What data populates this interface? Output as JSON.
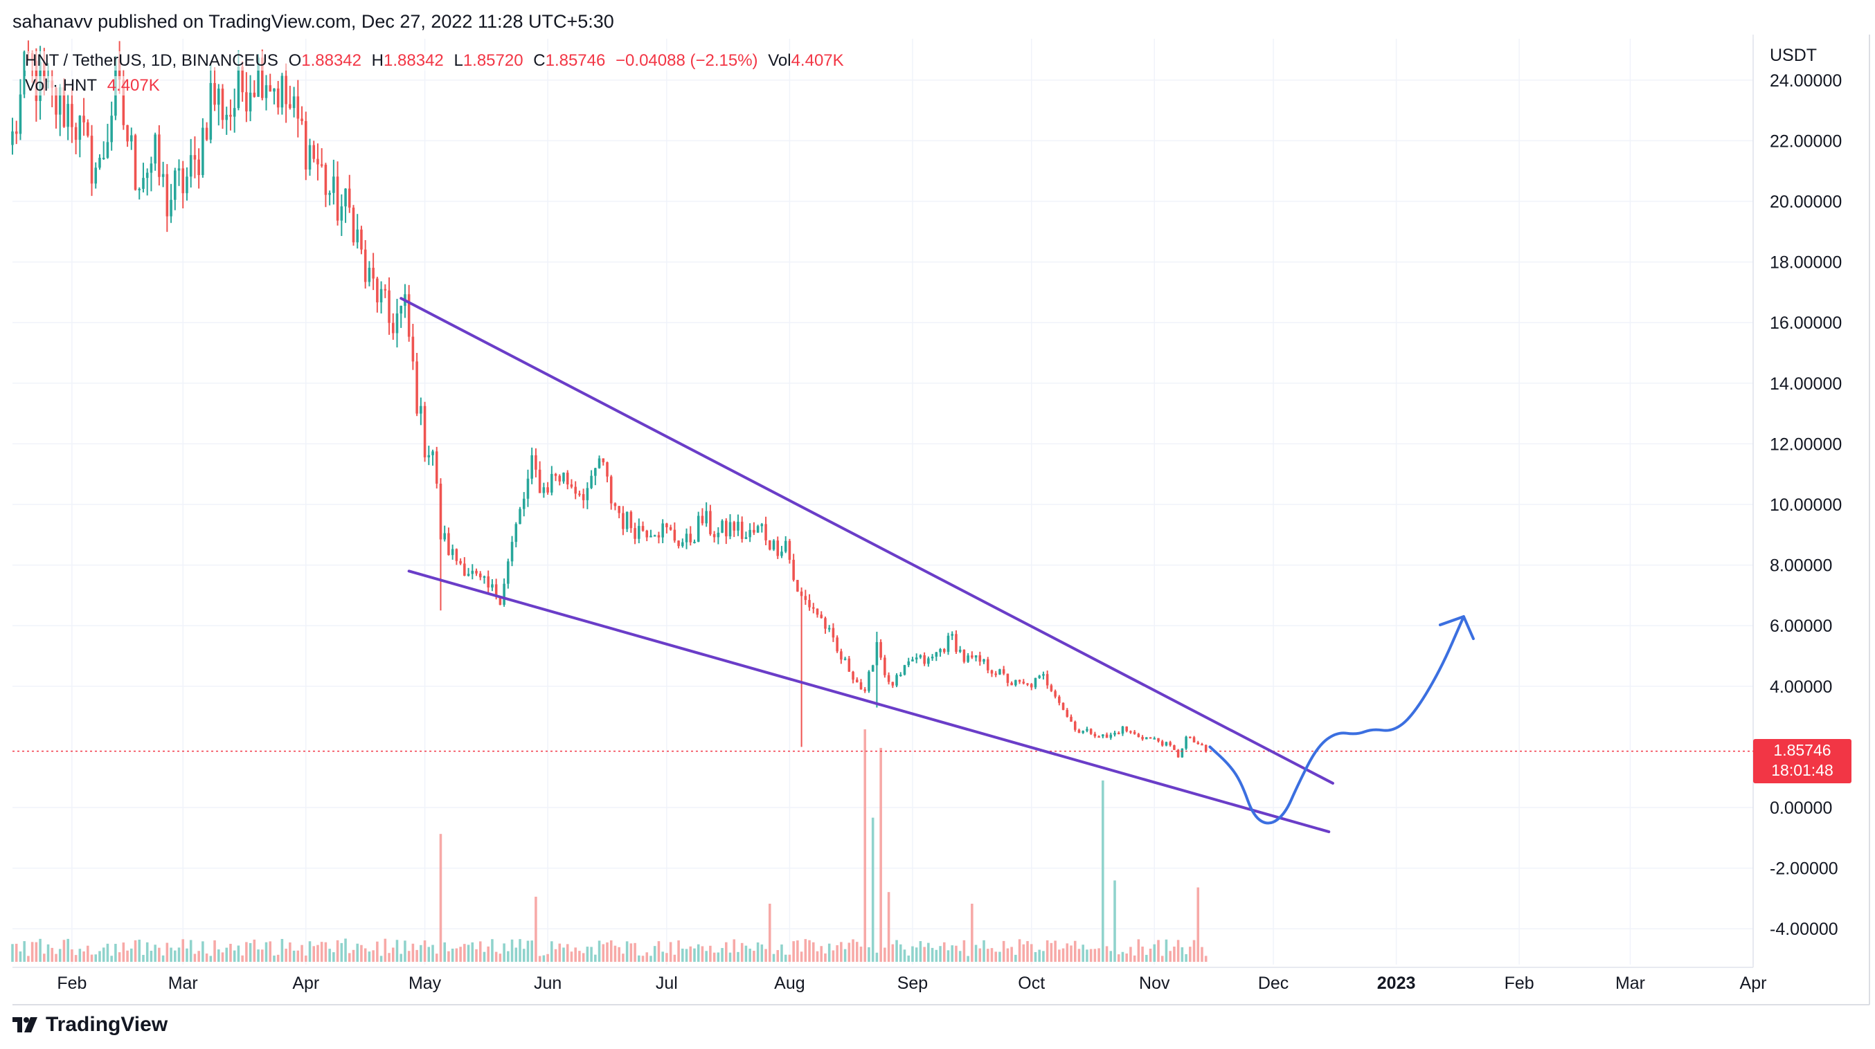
{
  "header": {
    "published_by": "sahanavv published on TradingView.com, Dec 27, 2022 11:28 UTC+5:30"
  },
  "legend": {
    "symbol": "HNT / TetherUS, 1D, BINANCEUS",
    "o_key": "O",
    "o_val": "1.88342",
    "h_key": "H",
    "h_val": "1.88342",
    "l_key": "L",
    "l_val": "1.85720",
    "c_key": "C",
    "c_val": "1.85746",
    "change": "−0.04088 (−2.15%)",
    "vol_key": "Vol",
    "vol_val": "4.407K",
    "vol_series": "Vol · HNT",
    "vol_series_val": "4.407K"
  },
  "price_badge": {
    "price": "1.85746",
    "countdown": "18:01:48"
  },
  "footer": {
    "brand": "TradingView"
  },
  "colors": {
    "up": "#26a69a",
    "down": "#ef5350",
    "vol_up": "#8fd3cc",
    "vol_down": "#f7a9a7",
    "channel": "#6a3dc8",
    "projection": "#3b6fe0",
    "last_price": "#f23645",
    "grid": "#f0f3fa"
  },
  "chart_data": {
    "type": "candlestick",
    "symbol": "HNT / TetherUS",
    "interval": "1D",
    "exchange": "BINANCEUS",
    "ylabel": "USDT",
    "y_ticks": [
      24,
      22,
      20,
      18,
      16,
      14,
      12,
      10,
      8,
      6,
      4,
      0,
      -2,
      -4
    ],
    "y_tick_labels": [
      "24.00000",
      "22.00000",
      "20.00000",
      "18.00000",
      "16.00000",
      "14.00000",
      "12.00000",
      "10.00000",
      "8.00000",
      "6.00000",
      "4.00000",
      "0.00000",
      "-2.00000",
      "-4.00000"
    ],
    "ylim": [
      -5.2,
      25.2
    ],
    "x_tick_labels": [
      {
        "label": "Feb",
        "day": 31
      },
      {
        "label": "Mar",
        "day": 59
      },
      {
        "label": "Apr",
        "day": 90
      },
      {
        "label": "May",
        "day": 120
      },
      {
        "label": "Jun",
        "day": 151
      },
      {
        "label": "Jul",
        "day": 181
      },
      {
        "label": "Aug",
        "day": 212
      },
      {
        "label": "Sep",
        "day": 243
      },
      {
        "label": "Oct",
        "day": 273
      },
      {
        "label": "Nov",
        "day": 304
      },
      {
        "label": "Dec",
        "day": 334
      },
      {
        "label": "2023",
        "day": 365,
        "bold": true
      },
      {
        "label": "Feb",
        "day": 396
      },
      {
        "label": "Mar",
        "day": 424
      },
      {
        "label": "Apr",
        "day": 455
      }
    ],
    "xlim_days": [
      16,
      455
    ],
    "last_price": 1.85746,
    "anchors": [
      [
        16,
        22.0
      ],
      [
        20,
        24.5
      ],
      [
        25,
        23.3
      ],
      [
        31,
        23.0
      ],
      [
        35,
        21.5
      ],
      [
        38,
        21.0
      ],
      [
        42,
        23.8
      ],
      [
        47,
        21.0
      ],
      [
        52,
        21.3
      ],
      [
        55,
        20.0
      ],
      [
        58,
        20.5
      ],
      [
        62,
        21.0
      ],
      [
        66,
        23.5
      ],
      [
        71,
        23.0
      ],
      [
        75,
        24.0
      ],
      [
        79,
        24.5
      ],
      [
        84,
        23.5
      ],
      [
        88,
        22.5
      ],
      [
        92,
        21.5
      ],
      [
        97,
        20.0
      ],
      [
        102,
        19.5
      ],
      [
        105,
        17.5
      ],
      [
        108,
        17.0
      ],
      [
        111,
        16.0
      ],
      [
        115,
        16.4
      ],
      [
        118,
        13.5
      ],
      [
        120,
        12.0
      ],
      [
        122,
        11.8
      ],
      [
        124,
        9.0
      ],
      [
        127,
        8.3
      ],
      [
        130,
        8.0
      ],
      [
        133,
        7.5
      ],
      [
        136,
        7.2
      ],
      [
        139,
        7.0
      ],
      [
        143,
        9.2
      ],
      [
        147,
        11.2
      ],
      [
        150,
        10.5
      ],
      [
        153,
        11.0
      ],
      [
        156,
        10.8
      ],
      [
        159,
        10.5
      ],
      [
        162,
        10.5
      ],
      [
        164,
        11.5
      ],
      [
        167,
        10.2
      ],
      [
        170,
        9.5
      ],
      [
        174,
        9.2
      ],
      [
        178,
        9.3
      ],
      [
        182,
        9.0
      ],
      [
        186,
        8.7
      ],
      [
        190,
        9.5
      ],
      [
        194,
        9.0
      ],
      [
        198,
        9.3
      ],
      [
        201,
        8.9
      ],
      [
        205,
        9.2
      ],
      [
        208,
        8.6
      ],
      [
        211,
        8.8
      ],
      [
        214,
        7.0
      ],
      [
        218,
        6.6
      ],
      [
        221,
        6.0
      ],
      [
        224,
        5.1
      ],
      [
        228,
        4.4
      ],
      [
        231,
        3.7
      ],
      [
        234,
        5.5
      ],
      [
        237,
        4.0
      ],
      [
        240,
        4.3
      ],
      [
        243,
        4.9
      ],
      [
        247,
        4.8
      ],
      [
        250,
        5.2
      ],
      [
        253,
        5.6
      ],
      [
        256,
        4.9
      ],
      [
        260,
        4.8
      ],
      [
        264,
        4.5
      ],
      [
        268,
        4.1
      ],
      [
        272,
        4.0
      ],
      [
        276,
        4.3
      ],
      [
        279,
        3.8
      ],
      [
        282,
        3.0
      ],
      [
        285,
        2.5
      ],
      [
        288,
        2.5
      ],
      [
        292,
        2.3
      ],
      [
        296,
        2.6
      ],
      [
        299,
        2.4
      ],
      [
        302,
        2.3
      ],
      [
        305,
        2.2
      ],
      [
        308,
        2.0
      ],
      [
        310,
        1.7
      ],
      [
        312,
        2.3
      ],
      [
        315,
        2.1
      ],
      [
        317,
        1.86
      ]
    ],
    "notable_wicks": [
      {
        "day": 124,
        "high": 9.5,
        "low": 6.5
      },
      {
        "day": 215,
        "high": 7.2,
        "low": 2.0
      },
      {
        "day": 234,
        "high": 5.8,
        "low": 3.3
      }
    ],
    "volume_spikes": [
      {
        "day": 124,
        "rel": 0.55
      },
      {
        "day": 148,
        "rel": 0.28
      },
      {
        "day": 207,
        "rel": 0.25
      },
      {
        "day": 231,
        "rel": 1.0
      },
      {
        "day": 233,
        "rel": 0.62
      },
      {
        "day": 235,
        "rel": 0.92
      },
      {
        "day": 237,
        "rel": 0.3
      },
      {
        "day": 258,
        "rel": 0.25
      },
      {
        "day": 291,
        "rel": 0.78
      },
      {
        "day": 294,
        "rel": 0.35
      },
      {
        "day": 315,
        "rel": 0.32
      }
    ],
    "trendlines": [
      {
        "name": "upper",
        "from": [
          114,
          16.8
        ],
        "to": [
          349,
          0.8
        ]
      },
      {
        "name": "lower",
        "from": [
          116,
          7.8
        ],
        "to": [
          348,
          -0.8
        ]
      }
    ],
    "projection_path": [
      [
        318,
        2.0
      ],
      [
        323,
        1.4
      ],
      [
        326,
        0.8
      ],
      [
        329,
        -0.3
      ],
      [
        333,
        -0.6
      ],
      [
        337,
        -0.2
      ],
      [
        340,
        0.7
      ],
      [
        345,
        2.0
      ],
      [
        350,
        2.5
      ],
      [
        355,
        2.4
      ],
      [
        359,
        2.6
      ],
      [
        364,
        2.5
      ],
      [
        369,
        3.0
      ],
      [
        376,
        4.5
      ],
      [
        382,
        6.3
      ]
    ],
    "projection_arrow_head": [
      382,
      6.3
    ]
  }
}
